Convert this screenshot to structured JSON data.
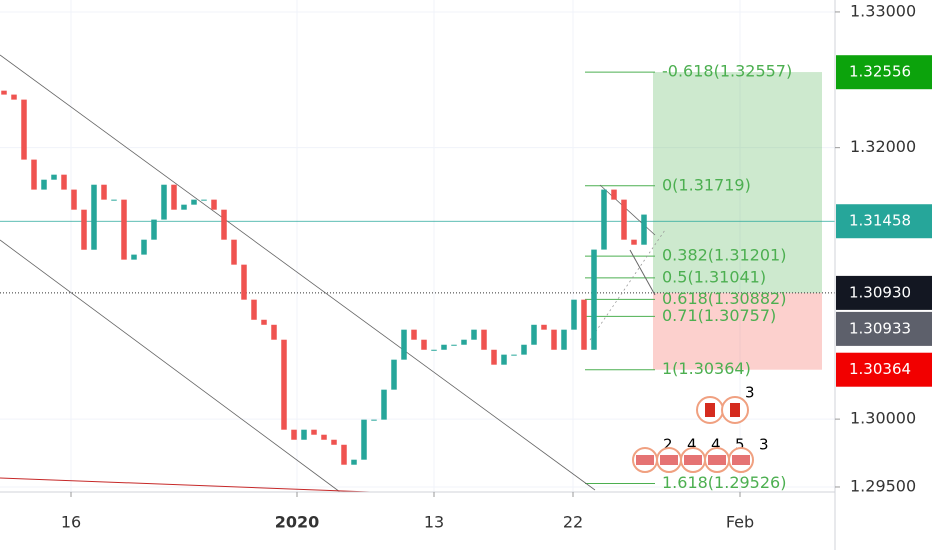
{
  "chart_data": {
    "type": "candlestick",
    "x": [
      0,
      1,
      2,
      3,
      4,
      5,
      6,
      7,
      8,
      9,
      10,
      11,
      12,
      13,
      14,
      15,
      16,
      17,
      18,
      19,
      20,
      21,
      22,
      23,
      24,
      25,
      26,
      27,
      28,
      29,
      30,
      31,
      32,
      33,
      34,
      35,
      36,
      37,
      38,
      39,
      40,
      41,
      42,
      43,
      44,
      45,
      46,
      47,
      48,
      49,
      50,
      51,
      52,
      53,
      54,
      55,
      56,
      57,
      58,
      59,
      60,
      61,
      62,
      63,
      64
    ],
    "open": [
      1.3242,
      1.32391,
      1.32354,
      1.31912,
      1.31691,
      1.31764,
      1.31801,
      1.31691,
      1.31543,
      1.31248,
      1.31727,
      1.31617,
      1.31617,
      1.31175,
      1.31212,
      1.31322,
      1.3147,
      1.31727,
      1.31543,
      1.3158,
      1.31617,
      1.31617,
      1.31543,
      1.31322,
      1.31138,
      1.3088,
      1.30732,
      1.30695,
      1.30585,
      1.29922,
      1.29848,
      1.29922,
      1.29885,
      1.29848,
      1.29811,
      1.29664,
      1.29701,
      1.29996,
      1.29996,
      1.30217,
      1.30438,
      1.30659,
      1.30585,
      1.30511,
      1.30511,
      1.30548,
      1.30548,
      1.30585,
      1.30659,
      1.30511,
      1.30401,
      1.30475,
      1.30475,
      1.30548,
      1.30695,
      1.30659,
      1.30511,
      1.30659,
      1.3088,
      1.30511,
      1.31249,
      1.31691,
      1.31617,
      1.31322,
      1.31285
    ],
    "close": [
      1.32391,
      1.32354,
      1.31912,
      1.31691,
      1.31764,
      1.31801,
      1.31691,
      1.31543,
      1.31248,
      1.31727,
      1.31617,
      1.31617,
      1.31175,
      1.31212,
      1.31322,
      1.3147,
      1.31727,
      1.31543,
      1.3158,
      1.31617,
      1.31617,
      1.31543,
      1.31322,
      1.31138,
      1.3088,
      1.30732,
      1.30695,
      1.30585,
      1.29922,
      1.29848,
      1.29922,
      1.29885,
      1.29848,
      1.29811,
      1.29664,
      1.29701,
      1.29996,
      1.29996,
      1.30217,
      1.30438,
      1.30659,
      1.30585,
      1.30511,
      1.30511,
      1.30548,
      1.30548,
      1.30585,
      1.30659,
      1.30511,
      1.30401,
      1.30475,
      1.30475,
      1.30548,
      1.30695,
      1.30659,
      1.30511,
      1.30659,
      1.3088,
      1.30511,
      1.31249,
      1.31691,
      1.31617,
      1.31322,
      1.31285,
      1.31507
    ],
    "up_color": "#26a69a",
    "down_color": "#ef5350",
    "xlim": [
      0,
      83.5
    ],
    "xticks": [
      {
        "value": 7.1,
        "label": "16"
      },
      {
        "value": 29.7,
        "label": "2020"
      },
      {
        "value": 43.4,
        "label": "13"
      },
      {
        "value": 57.3,
        "label": "22"
      },
      {
        "value": 74.0,
        "label": "Feb"
      }
    ],
    "ylim": [
      1.29463,
      1.33088
    ],
    "yticks": [
      {
        "value": 1.33,
        "label": "1.33000"
      },
      {
        "value": 1.32,
        "label": "1.32000"
      },
      {
        "value": 1.3,
        "label": "1.30000"
      },
      {
        "value": 1.295,
        "label": "1.29500"
      }
    ],
    "fib_levels": [
      {
        "label": "-0.618(1.32557)",
        "value": 1.32557
      },
      {
        "label": "0(1.31719)",
        "value": 1.31719
      },
      {
        "label": "0.382(1.31201)",
        "value": 1.31201
      },
      {
        "label": "0.5(1.31041)",
        "value": 1.31041
      },
      {
        "label": "0.618(1.30882)",
        "value": 1.30882
      },
      {
        "label": "0.71(1.30757)",
        "value": 1.30757
      },
      {
        "label": "1(1.30364)",
        "value": 1.30364
      },
      {
        "label": "1.618(1.29526)",
        "value": 1.29526
      }
    ],
    "price_tags": {
      "values": [
        1.32556,
        1.31458,
        {
          "value": 1.3093,
          "label": "1.30930"
        },
        1.30933,
        1.30364
      ],
      "colors": [
        "#0ca30c",
        "#26a69a",
        "#131722",
        "#5d606b",
        "#f20000"
      ]
    },
    "events_ca": [
      3
    ],
    "events_us": [
      2,
      4,
      4,
      5,
      3
    ]
  }
}
